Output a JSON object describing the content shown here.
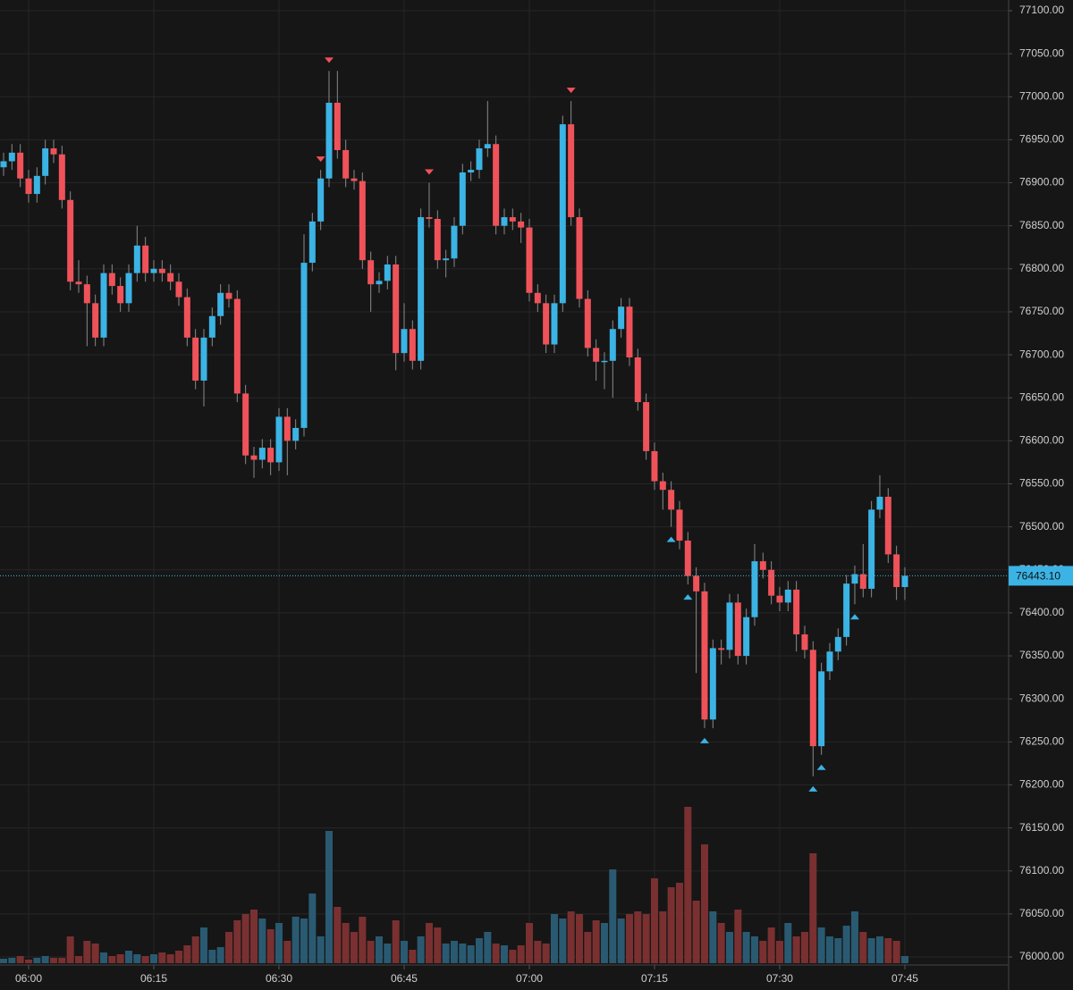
{
  "chart_data": {
    "type": "candlestick",
    "categories": [
      null,
      null,
      null,
      "06:00",
      null,
      null,
      null,
      null,
      null,
      null,
      null,
      null,
      null,
      null,
      null,
      null,
      null,
      null,
      "06:15",
      null,
      null,
      null,
      null,
      null,
      null,
      null,
      null,
      null,
      null,
      null,
      null,
      null,
      null,
      "06:30",
      null,
      null,
      null,
      null,
      null,
      null,
      null,
      null,
      null,
      null,
      null,
      null,
      null,
      null,
      "06:45",
      null,
      null,
      null,
      null,
      null,
      null,
      null,
      null,
      null,
      null,
      null,
      null,
      null,
      null,
      "07:00",
      null,
      null,
      null,
      null,
      null,
      null,
      null,
      null,
      null,
      null,
      null,
      null,
      null,
      null,
      "07:15",
      null,
      null,
      null,
      null,
      null,
      null,
      null,
      null,
      null,
      null,
      null,
      null,
      null,
      null,
      "07:30",
      null,
      null,
      null,
      null,
      null,
      null,
      null,
      null,
      null,
      null,
      null,
      null,
      null,
      null,
      "07:45"
    ],
    "open": [
      76918,
      76925,
      76935,
      76905,
      76887,
      76908,
      76940,
      76933,
      76880,
      76785,
      76782,
      76760,
      76720,
      76795,
      76780,
      76760,
      76795,
      76827,
      76795,
      76800,
      76795,
      76785,
      76767,
      76720,
      76670,
      76720,
      76745,
      76772,
      76765,
      76655,
      76583,
      76578,
      76592,
      76575,
      76628,
      76600,
      76615,
      76807,
      76855,
      76905,
      76993,
      76938,
      76905,
      76902,
      76810,
      76782,
      76786,
      76805,
      76702,
      76730,
      76693,
      76860,
      76858,
      76810,
      76812,
      76850,
      76912,
      76915,
      76940,
      76945,
      76850,
      76860,
      76855,
      76848,
      76772,
      76760,
      76712,
      76760,
      76968,
      76860,
      76765,
      76708,
      76692,
      76693,
      76730,
      76756,
      76697,
      76645,
      76588,
      76553,
      76543,
      76520,
      76484,
      76443,
      76425,
      76276,
      76359,
      76357,
      76412,
      76350,
      76395,
      76460,
      76450,
      76420,
      76412,
      76427,
      76375,
      76357,
      76245,
      76332,
      76355,
      76372,
      76434,
      76445,
      76428,
      76520,
      76535,
      76468,
      76430
    ],
    "high": [
      76935,
      76945,
      76945,
      76915,
      76918,
      76950,
      76950,
      76943,
      76890,
      76810,
      76792,
      76770,
      76805,
      76805,
      76790,
      76805,
      76850,
      76837,
      76810,
      76810,
      76805,
      76795,
      76777,
      76730,
      76730,
      76755,
      76782,
      76782,
      76775,
      76665,
      76593,
      76602,
      76602,
      76638,
      76638,
      76625,
      76840,
      76865,
      76915,
      77030,
      77030,
      76950,
      76915,
      76912,
      76820,
      76796,
      76815,
      76815,
      76760,
      76740,
      76870,
      76900,
      76868,
      76822,
      76860,
      76922,
      76925,
      76950,
      76995,
      76955,
      76870,
      76870,
      76865,
      76858,
      76782,
      76770,
      76770,
      76978,
      76995,
      76870,
      76775,
      76718,
      76703,
      76740,
      76766,
      76766,
      76707,
      76655,
      76598,
      76563,
      76553,
      76530,
      76494,
      76453,
      76435,
      76369,
      76369,
      76422,
      76422,
      76405,
      76480,
      76470,
      76460,
      76430,
      76437,
      76437,
      76385,
      76367,
      76342,
      76365,
      76382,
      76444,
      76455,
      76480,
      76530,
      76560,
      76545,
      76478,
      76453
    ],
    "low": [
      76908,
      76915,
      76895,
      76877,
      76877,
      76898,
      76923,
      76870,
      76775,
      76772,
      76710,
      76710,
      76710,
      76770,
      76750,
      76750,
      76785,
      76785,
      76785,
      76785,
      76775,
      76757,
      76710,
      76660,
      76640,
      76710,
      76735,
      76755,
      76645,
      76573,
      76557,
      76568,
      76560,
      76565,
      76560,
      76590,
      76605,
      76797,
      76845,
      76895,
      76928,
      76895,
      76892,
      76800,
      76750,
      76772,
      76776,
      76682,
      76692,
      76683,
      76683,
      76848,
      76800,
      76790,
      76802,
      76840,
      76902,
      76905,
      76930,
      76840,
      76840,
      76845,
      76830,
      76762,
      76750,
      76702,
      76702,
      76750,
      76850,
      76755,
      76698,
      76670,
      76660,
      76650,
      76720,
      76687,
      76635,
      76578,
      76543,
      76520,
      76500,
      76474,
      76433,
      76330,
      76266,
      76266,
      76340,
      76347,
      76340,
      76340,
      76385,
      76440,
      76410,
      76402,
      76402,
      76355,
      76347,
      76210,
      76235,
      76322,
      76345,
      76362,
      76410,
      76418,
      76418,
      76510,
      76458,
      76415,
      76415
    ],
    "close": [
      76925,
      76935,
      76905,
      76887,
      76908,
      76940,
      76933,
      76880,
      76785,
      76782,
      76760,
      76720,
      76795,
      76780,
      76760,
      76795,
      76827,
      76795,
      76800,
      76795,
      76785,
      76767,
      76720,
      76670,
      76720,
      76745,
      76772,
      76765,
      76655,
      76583,
      76578,
      76592,
      76575,
      76628,
      76600,
      76615,
      76807,
      76855,
      76905,
      76993,
      76938,
      76905,
      76902,
      76810,
      76782,
      76786,
      76805,
      76702,
      76730,
      76693,
      76860,
      76858,
      76810,
      76812,
      76850,
      76912,
      76915,
      76940,
      76945,
      76850,
      76860,
      76855,
      76848,
      76772,
      76760,
      76712,
      76760,
      76968,
      76860,
      76765,
      76708,
      76692,
      76693,
      76730,
      76756,
      76697,
      76645,
      76588,
      76553,
      76543,
      76520,
      76484,
      76443,
      76425,
      76276,
      76359,
      76357,
      76412,
      76350,
      76395,
      76460,
      76450,
      76420,
      76412,
      76427,
      76375,
      76357,
      76245,
      76332,
      76355,
      76372,
      76434,
      76445,
      76428,
      76520,
      76535,
      76468,
      76430,
      76443.1
    ],
    "volume": [
      5,
      6,
      8,
      4,
      6,
      8,
      6,
      6,
      30,
      8,
      25,
      22,
      12,
      8,
      10,
      14,
      10,
      8,
      10,
      12,
      10,
      14,
      20,
      30,
      40,
      15,
      18,
      35,
      48,
      55,
      60,
      50,
      38,
      45,
      25,
      52,
      50,
      78,
      30,
      148,
      63,
      45,
      35,
      52,
      25,
      30,
      22,
      48,
      25,
      15,
      30,
      45,
      40,
      22,
      25,
      22,
      20,
      28,
      35,
      22,
      20,
      15,
      20,
      45,
      25,
      22,
      55,
      50,
      58,
      55,
      35,
      48,
      45,
      105,
      50,
      55,
      58,
      55,
      95,
      58,
      85,
      90,
      175,
      70,
      133,
      58,
      45,
      35,
      60,
      35,
      30,
      25,
      40,
      25,
      45,
      30,
      35,
      123,
      40,
      30,
      28,
      42,
      58,
      35,
      28,
      30,
      28,
      25,
      8
    ],
    "signals_down": [
      38,
      39,
      51,
      68
    ],
    "signals_up": [
      80,
      82,
      84,
      97,
      98,
      102
    ],
    "last_price": {
      "value": 76443.1,
      "label": "76443.10"
    },
    "up_color": "#3bb3e4",
    "down_color": "#f0525a",
    "up_volume_color": "#2a5a72",
    "down_volume_color": "#7a3030",
    "ylim": [
      76000,
      77100
    ],
    "yticks": [
      {
        "value": 76000,
        "label": "76000.00"
      },
      {
        "value": 76050,
        "label": "76050.00"
      },
      {
        "value": 76100,
        "label": "76100.00"
      },
      {
        "value": 76150,
        "label": "76150.00"
      },
      {
        "value": 76200,
        "label": "76200.00"
      },
      {
        "value": 76250,
        "label": "76250.00"
      },
      {
        "value": 76300,
        "label": "76300.00"
      },
      {
        "value": 76350,
        "label": "76350.00"
      },
      {
        "value": 76400,
        "label": "76400.00"
      },
      {
        "value": 76450,
        "label": "76450.00"
      },
      {
        "value": 76500,
        "label": "76500.00"
      },
      {
        "value": 76550,
        "label": "76550.00"
      },
      {
        "value": 76600,
        "label": "76600.00"
      },
      {
        "value": 76650,
        "label": "76650.00"
      },
      {
        "value": 76700,
        "label": "76700.00"
      },
      {
        "value": 76750,
        "label": "76750.00"
      },
      {
        "value": 76800,
        "label": "76800.00"
      },
      {
        "value": 76850,
        "label": "76850.00"
      },
      {
        "value": 76900,
        "label": "76900.00"
      },
      {
        "value": 76950,
        "label": "76950.00"
      },
      {
        "value": 77000,
        "label": "77000.00"
      },
      {
        "value": 77050,
        "label": "77050.00"
      },
      {
        "value": 77100,
        "label": "77100.00"
      }
    ],
    "grid": true
  }
}
